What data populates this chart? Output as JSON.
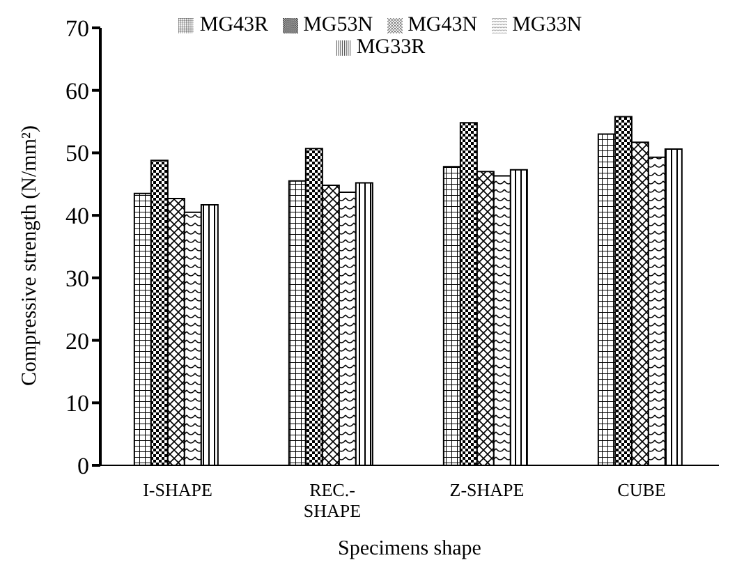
{
  "chart_data": {
    "type": "bar",
    "xlabel": "Specimens shape",
    "ylabel": "Compressive strength (N/mm²)",
    "categories": [
      "I-SHAPE",
      "REC.- SHAPE",
      "Z-SHAPE",
      "CUBE"
    ],
    "series": [
      {
        "name": "MG43R",
        "color": "#000000",
        "values": [
          43.5,
          45.5,
          47.8,
          53.0
        ]
      },
      {
        "name": "MG53N",
        "color": "#000000",
        "values": [
          48.8,
          50.7,
          54.8,
          55.8
        ]
      },
      {
        "name": "MG43N",
        "color": "#000000",
        "values": [
          42.7,
          44.8,
          47.0,
          51.7
        ]
      },
      {
        "name": "MG33N",
        "color": "#000000",
        "values": [
          40.5,
          43.7,
          46.3,
          49.3
        ]
      },
      {
        "name": "MG33R",
        "color": "#000000",
        "values": [
          41.7,
          45.2,
          47.3,
          50.6
        ]
      }
    ],
    "ylim": [
      0,
      70
    ],
    "yticks": [
      0,
      10,
      20,
      30,
      40,
      50,
      60,
      70
    ],
    "grid": false,
    "legend": "top"
  }
}
